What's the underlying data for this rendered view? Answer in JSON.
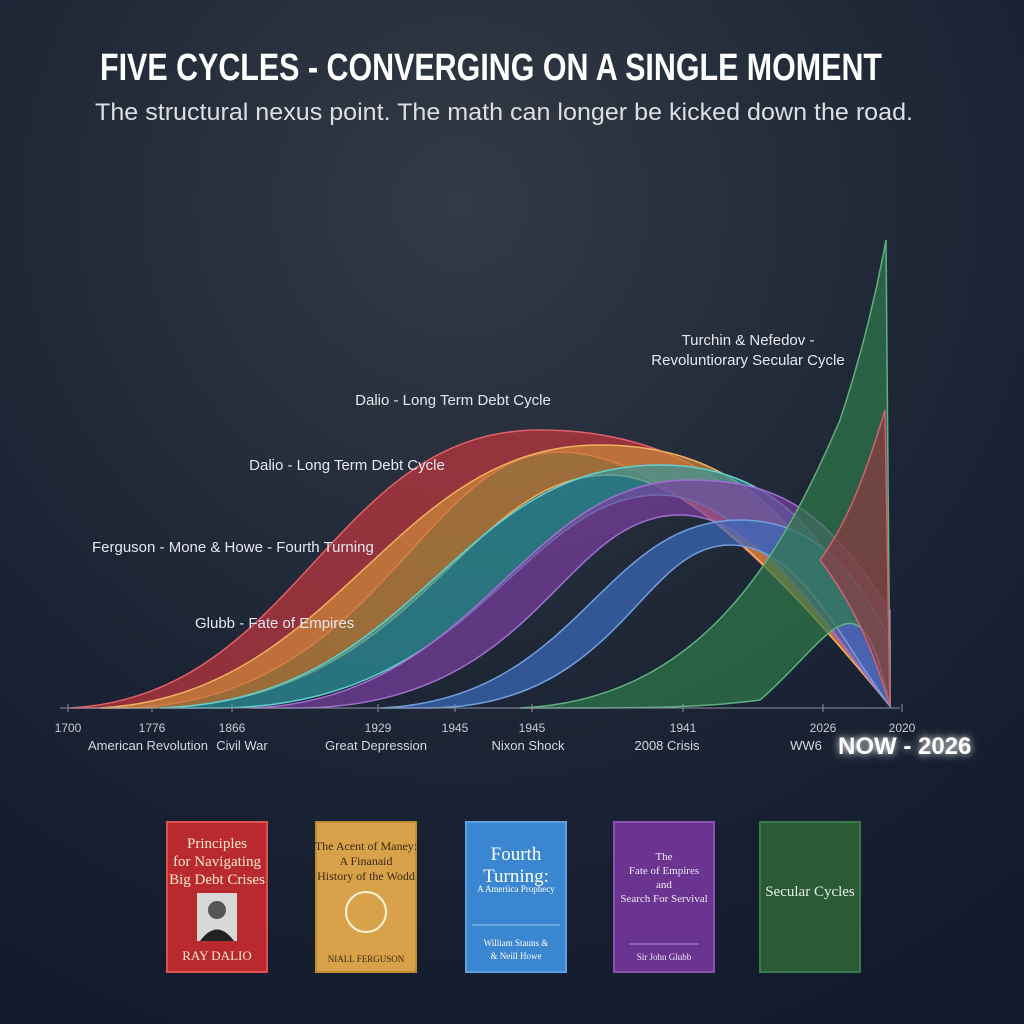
{
  "header": {
    "title": "FIVE CYCLES - CONVERGING ON A SINGLE MOMENT",
    "subtitle": "The structural nexus point. The math can longer be kicked down the road."
  },
  "cycles": [
    {
      "label": [
        "Turchin & Nefedov -",
        "Revoluntiorary Secular Cycle"
      ]
    },
    {
      "label": [
        "Dalio - Long Term Debt Cycle"
      ]
    },
    {
      "label": [
        "Dalio - Long Term Debt Cycle"
      ]
    },
    {
      "label": [
        "Ferguson - Mone & Howe - Fourth Turning"
      ]
    },
    {
      "label": [
        "Glubb - Fate of Empires"
      ]
    }
  ],
  "timeline": {
    "years": [
      "1700",
      "1776",
      "1866",
      "1929",
      "1945",
      "1945",
      "1941",
      "2026",
      "2020"
    ],
    "events": [
      "American Revolution",
      "Civil War",
      "Great Depression",
      "Nixon Shock",
      "2008 Crisis",
      "WW6"
    ],
    "now": "NOW - 2026"
  },
  "books": [
    {
      "title": [
        "Principles",
        "for Navigating",
        "Big Debt Crises"
      ],
      "author": [
        "RAY DALIO"
      ]
    },
    {
      "title": [
        "The Acent of Maney:",
        "A Finanaid",
        "History of the Wodd"
      ],
      "author": [
        "NIALL FERGUSON"
      ]
    },
    {
      "title": [
        "Fourth",
        "Turning:",
        "A Ameriica Prophecy"
      ],
      "author": [
        "William Stauns &",
        "& Neill Howe"
      ]
    },
    {
      "title": [
        "The",
        "Fate of Empires",
        "and",
        "Search For Servival"
      ],
      "author": [
        "Sir John Glubb"
      ]
    },
    {
      "title": [
        "Secular Cycles"
      ],
      "author": []
    }
  ]
}
